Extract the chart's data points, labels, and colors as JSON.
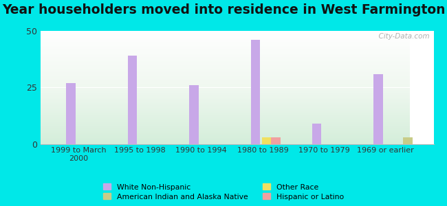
{
  "title": "Year householders moved into residence in West Farmington",
  "categories": [
    "1999 to March\n2000",
    "1995 to 1998",
    "1990 to 1994",
    "1980 to 1989",
    "1970 to 1979",
    "1969 or earlier"
  ],
  "series": {
    "White Non-Hispanic": [
      27,
      39,
      26,
      46,
      9,
      31
    ],
    "American Indian and Alaska Native": [
      0,
      0,
      0,
      0,
      0,
      3
    ],
    "Other Race": [
      0,
      0,
      0,
      3,
      0,
      0
    ],
    "Hispanic or Latino": [
      0,
      0,
      0,
      3,
      0,
      0
    ]
  },
  "colors": {
    "White Non-Hispanic": "#c8a8e8",
    "American Indian and Alaska Native": "#c8cc88",
    "Other Race": "#f0e060",
    "Hispanic or Latino": "#f0a0a0"
  },
  "bar_width": 0.15,
  "ylim": [
    0,
    50
  ],
  "yticks": [
    0,
    25,
    50
  ],
  "outer_background": "#00e8e8",
  "watermark": "  City-Data.com",
  "title_fontsize": 13.5,
  "legend_left_col": [
    "White Non-Hispanic",
    "Other Race"
  ],
  "legend_right_col": [
    "American Indian and Alaska Native",
    "Hispanic or Latino"
  ]
}
